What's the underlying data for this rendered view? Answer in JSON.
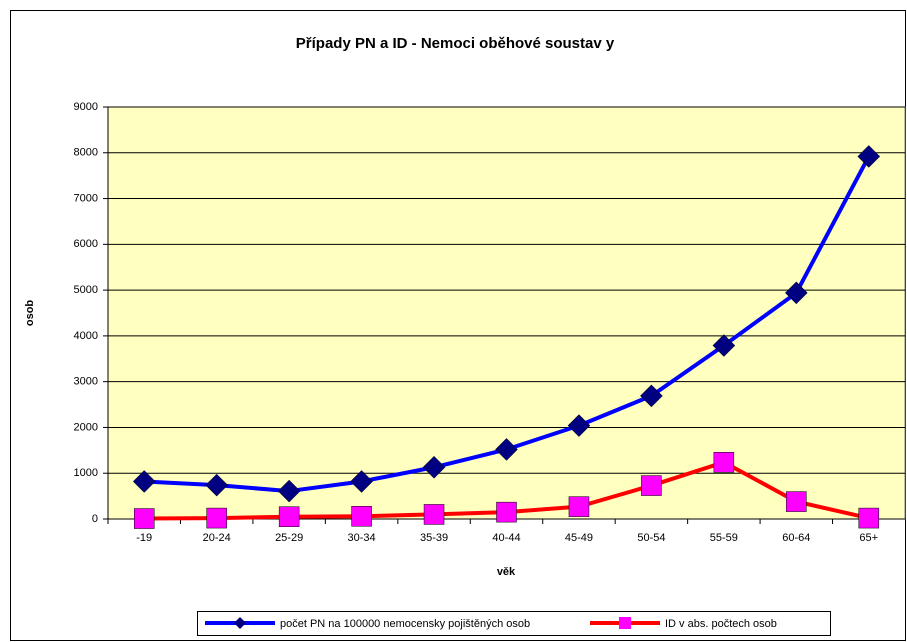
{
  "chart_data": {
    "type": "line",
    "title": "Případy PN a ID - Nemoci oběhové soustav y",
    "x_label": "věk",
    "y_label": "osob",
    "categories": [
      "-19",
      "20-24",
      "25-29",
      "30-34",
      "35-39",
      "40-44",
      "45-49",
      "50-54",
      "55-59",
      "60-64",
      "65+"
    ],
    "series": [
      {
        "name": "počet PN na 100000 nemocensky pojištěných osob",
        "color": "#0000ff",
        "marker_color": "#000080",
        "marker": "diamond",
        "values": [
          820,
          740,
          610,
          820,
          1130,
          1520,
          2040,
          2690,
          3790,
          4940,
          7920
        ]
      },
      {
        "name": "ID v abs. počtech osob",
        "color": "#ff0000",
        "marker_color": "#ff00ff",
        "marker": "square",
        "values": [
          10,
          20,
          50,
          60,
          100,
          150,
          270,
          730,
          1240,
          380,
          20
        ]
      }
    ],
    "ylim": [
      0,
      9000
    ],
    "yticks": [
      0,
      1000,
      2000,
      3000,
      4000,
      5000,
      6000,
      7000,
      8000,
      9000
    ],
    "grid": true,
    "legend": "bottom"
  }
}
